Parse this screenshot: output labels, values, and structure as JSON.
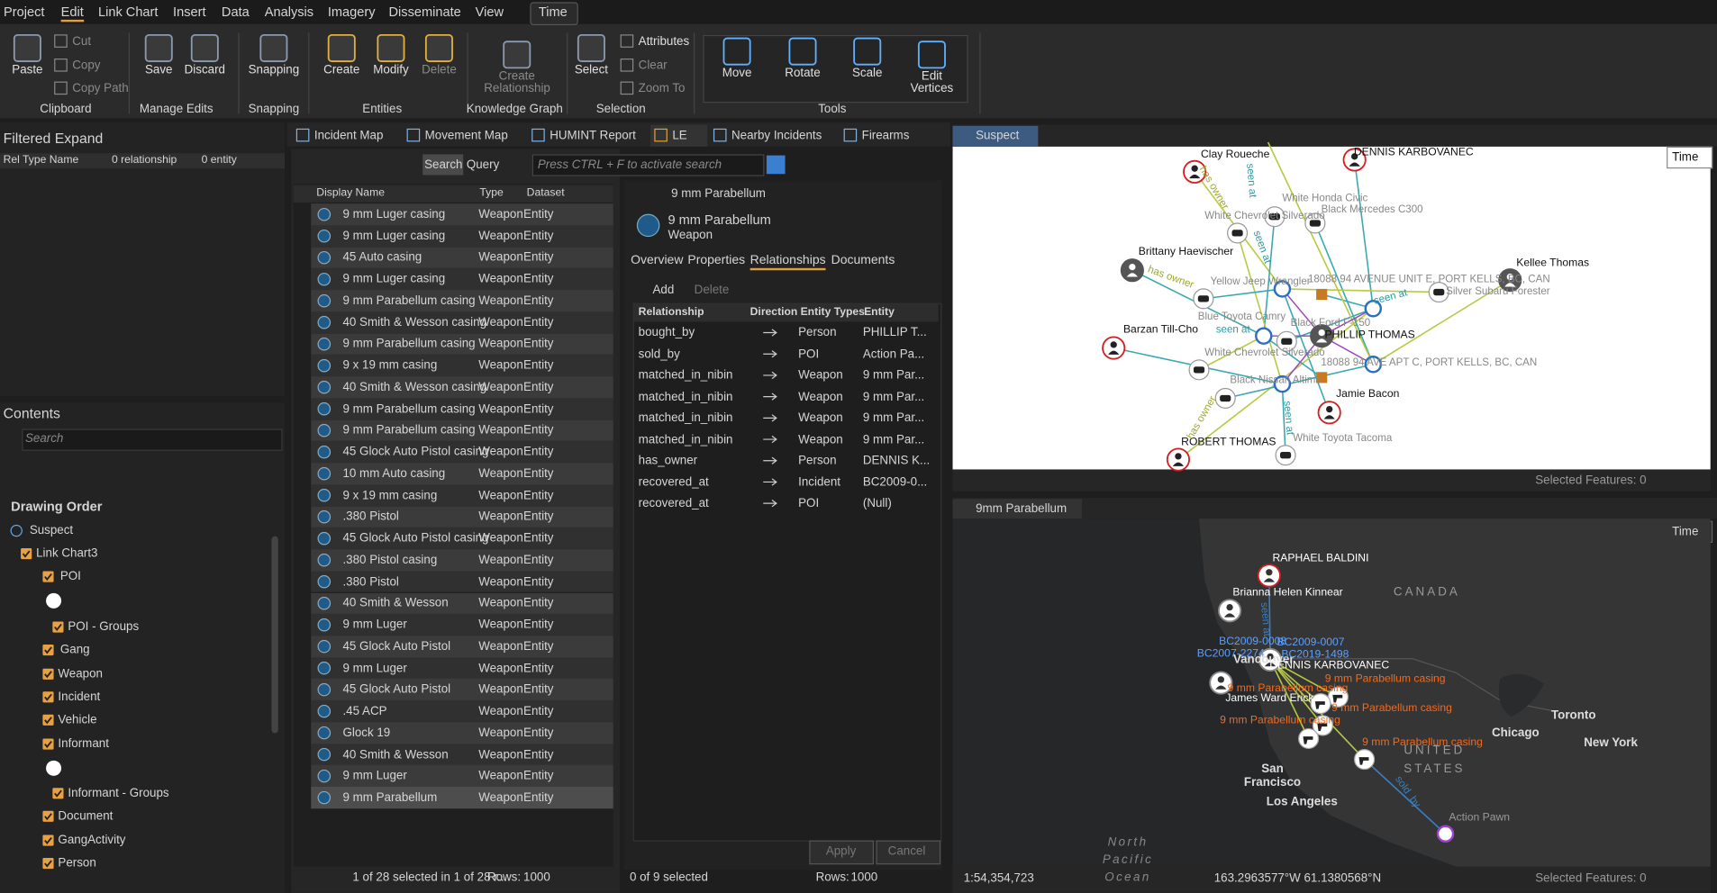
{
  "menu": {
    "tabs": [
      "Project",
      "Edit",
      "Link Chart",
      "Insert",
      "Data",
      "Analysis",
      "Imagery",
      "Disseminate",
      "View",
      "Time"
    ]
  },
  "ribbon": {
    "groups": [
      {
        "label": "Clipboard",
        "buttons": [
          "Paste",
          "Cut",
          "Copy",
          "Copy Path"
        ]
      },
      {
        "label": "Manage Edits",
        "buttons": [
          "Save",
          "Discard"
        ]
      },
      {
        "label": "Snapping",
        "buttons": [
          "Snapping"
        ]
      },
      {
        "label": "Entities",
        "buttons": [
          "Create",
          "Modify",
          "Delete"
        ]
      },
      {
        "label": "Knowledge Graph",
        "buttons": [
          "Create Relationship"
        ]
      },
      {
        "label": "Selection",
        "buttons": [
          "Select",
          "Attributes",
          "Clear",
          "Zoom To"
        ]
      },
      {
        "label": "Tools",
        "buttons": [
          "Move",
          "Rotate",
          "Scale",
          "Edit Vertices"
        ]
      }
    ]
  },
  "filtered_expand": {
    "title": "Filtered Expand",
    "columns": [
      "Rel Type Name",
      "0 relationship",
      "0 entity"
    ]
  },
  "contents": {
    "title": "Contents",
    "search_placeholder": "Search",
    "section": "Drawing Order",
    "tree": [
      "Suspect",
      "Link Chart3",
      "POI",
      "POI - Groups",
      "Gang",
      "Weapon",
      "Incident",
      "Vehicle",
      "Informant",
      "Informant - Groups",
      "Document",
      "GangActivity",
      "Person"
    ]
  },
  "view_tabs": [
    "Incident Map",
    "Movement Map",
    "HUMINT Report",
    "LE",
    "Nearby Incidents",
    "Firearms"
  ],
  "table": {
    "search_button": "Search",
    "query_button": "Query",
    "search_placeholder": "Press CTRL + F to activate search",
    "columns": [
      "Display Name",
      "Type",
      "Dataset"
    ],
    "rows": [
      [
        "9 mm Luger casing",
        "Weapon",
        "Entity"
      ],
      [
        "9 mm Luger casing",
        "Weapon",
        "Entity"
      ],
      [
        "45 Auto casing",
        "Weapon",
        "Entity"
      ],
      [
        "9 mm Luger casing",
        "Weapon",
        "Entity"
      ],
      [
        "9 mm Parabellum casing",
        "Weapon",
        "Entity"
      ],
      [
        "40 Smith & Wesson casing",
        "Weapon",
        "Entity"
      ],
      [
        "9 mm Parabellum casing",
        "Weapon",
        "Entity"
      ],
      [
        "9 x 19 mm casing",
        "Weapon",
        "Entity"
      ],
      [
        "40 Smith & Wesson casing",
        "Weapon",
        "Entity"
      ],
      [
        "9 mm Parabellum casing",
        "Weapon",
        "Entity"
      ],
      [
        "9 mm Parabellum casing",
        "Weapon",
        "Entity"
      ],
      [
        "45 Glock Auto Pistol casing",
        "Weapon",
        "Entity"
      ],
      [
        "10 mm Auto casing",
        "Weapon",
        "Entity"
      ],
      [
        "9 x 19 mm casing",
        "Weapon",
        "Entity"
      ],
      [
        ".380 Pistol",
        "Weapon",
        "Entity"
      ],
      [
        "45 Glock Auto Pistol casing",
        "Weapon",
        "Entity"
      ],
      [
        ".380 Pistol casing",
        "Weapon",
        "Entity"
      ],
      [
        ".380 Pistol",
        "Weapon",
        "Entity"
      ],
      [
        "40 Smith & Wesson",
        "Weapon",
        "Entity"
      ],
      [
        "9 mm Luger",
        "Weapon",
        "Entity"
      ],
      [
        "45 Glock Auto Pistol",
        "Weapon",
        "Entity"
      ],
      [
        "9 mm Luger",
        "Weapon",
        "Entity"
      ],
      [
        "45 Glock Auto Pistol",
        "Weapon",
        "Entity"
      ],
      [
        ".45 ACP",
        "Weapon",
        "Entity"
      ],
      [
        "Glock 19",
        "Weapon",
        "Entity"
      ],
      [
        "40 Smith & Wesson",
        "Weapon",
        "Entity"
      ],
      [
        "9 mm Luger",
        "Weapon",
        "Entity"
      ],
      [
        "9 mm Parabellum",
        "Weapon",
        "Entity"
      ]
    ],
    "status": "1 of 28 selected in 1 of 28 r...",
    "rows_label": "Rows:",
    "rows_value": "1000"
  },
  "details": {
    "breadcrumb": "9 mm Parabellum",
    "title": "9 mm Parabellum",
    "subtitle": "Weapon",
    "tabs": [
      "Overview",
      "Properties",
      "Relationships",
      "Documents"
    ],
    "add": "Add",
    "delete": "Delete",
    "columns": [
      "Relationship",
      "Direction",
      "Entity Types",
      "Entity"
    ],
    "rows": [
      [
        "bought_by",
        "Person",
        "PHILLIP T..."
      ],
      [
        "sold_by",
        "POI",
        "Action Pa..."
      ],
      [
        "matched_in_nibin",
        "Weapon",
        "9 mm Par..."
      ],
      [
        "matched_in_nibin",
        "Weapon",
        "9 mm Par..."
      ],
      [
        "matched_in_nibin",
        "Weapon",
        "9 mm Par..."
      ],
      [
        "matched_in_nibin",
        "Weapon",
        "9 mm Par..."
      ],
      [
        "has_owner",
        "Person",
        "DENNIS K..."
      ],
      [
        "recovered_at",
        "Incident",
        "BC2009-0..."
      ],
      [
        "recovered_at",
        "POI",
        "(Null)"
      ]
    ],
    "apply": "Apply",
    "cancel": "Cancel",
    "status": "0 of 9 selected",
    "rows_label": "Rows:",
    "rows_value": "1000"
  },
  "link_chart": {
    "tab": "Suspect",
    "time": "Time",
    "nodes": [
      "Clay Roueche",
      "DENNIS KARBOVANEC",
      "Brittany Haevischer",
      "Kellee Thomas",
      "Barzan Till-Cho",
      "PHILLIP THOMAS",
      "Jamie Bacon",
      "ROBERT THOMAS",
      "White Honda Civic",
      "White Chevrolet Silverado",
      "Black Mercedes C300",
      "Yellow Jeep Wrangler",
      "Blue Toyota Camry",
      "Black Ford F-150",
      "White Chevrolet Silverado",
      "Black Nissan Altima",
      "White Toyota Tacoma",
      "Silver Subaru Forester",
      "18088 94 AVENUE UNIT E, PORT KELLS, BC, CAN",
      "18088 94 AVE APT C, PORT KELLS, BC, CAN"
    ],
    "edge_labels": [
      "has owner",
      "has owner",
      "seen at",
      "seen at",
      "seen at",
      "seen at",
      "has owner",
      "seen at"
    ],
    "status": "Selected Features: 0"
  },
  "map": {
    "tab": "9mm Parabellum",
    "time": "Time",
    "places": [
      "CANADA",
      "UNITED STATES",
      "North Pacific Ocean",
      "Chicago",
      "Toronto",
      "New York",
      "San Francisco",
      "Los Angeles",
      "Vancouver"
    ],
    "entities": [
      "RAPHAEL BALDINI",
      "Brianna Helen Kinnear",
      "DENNIS KARBOVANEC",
      "James Ward Ericks",
      "BC2009-0008",
      "BC2009-0007",
      "BC2007-2274",
      "BC2019-1498",
      "Action Pawn"
    ],
    "casings": [
      "9 mm Parabellum casing",
      "9 mm Parabellum casing",
      "9 mm Parabellum casing",
      "9 mm Parabellum casing",
      "9 mm Parabellum casing"
    ],
    "edge_labels": [
      "sold_by",
      "seen at"
    ],
    "scale": "1:54,354,723",
    "coords": "163.2963577°W 61.1380568°N",
    "status": "Selected Features: 0"
  }
}
